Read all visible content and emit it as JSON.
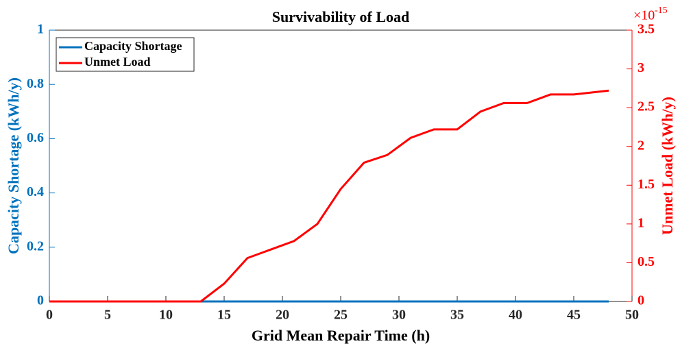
{
  "chart_data": {
    "type": "line",
    "title": "Survivability of Load",
    "x_label": "Grid Mean Repair Time (h)",
    "y_label": "Capacity Shortage (kWh/y)",
    "y2_label": "Unmet Load (kWh/y)",
    "y2_multiplier": "×10",
    "y2_exponent": "-15",
    "x": [
      0,
      1,
      3,
      5,
      7,
      9,
      11,
      13,
      15,
      17,
      19,
      21,
      23,
      25,
      27,
      29,
      31,
      33,
      35,
      37,
      39,
      41,
      43,
      45,
      48
    ],
    "series": [
      {
        "name": "Capacity Shortage",
        "color": "#0072bd",
        "axis": "y",
        "values": [
          0,
          0,
          0,
          0,
          0,
          0,
          0,
          0,
          0,
          0,
          0,
          0,
          0,
          0,
          0,
          0,
          0,
          0,
          0,
          0,
          0,
          0,
          0,
          0,
          0
        ]
      },
      {
        "name": "Unmet Load",
        "color": "#ff0000",
        "axis": "y2",
        "values": [
          0,
          0,
          0,
          0,
          0,
          0,
          0,
          0,
          0.23,
          0.56,
          0.67,
          0.78,
          1.0,
          1.45,
          1.79,
          1.89,
          2.11,
          2.22,
          2.22,
          2.45,
          2.56,
          2.56,
          2.67,
          2.67,
          2.72
        ]
      }
    ],
    "xlim": [
      0,
      50
    ],
    "xticks": [
      0,
      5,
      10,
      15,
      20,
      25,
      30,
      35,
      40,
      45,
      50
    ],
    "ylim": [
      0,
      1
    ],
    "yticks": [
      0,
      0.2,
      0.4,
      0.6,
      0.8,
      1
    ],
    "y2lim": [
      0,
      3.5
    ],
    "y2ticks": [
      0,
      0.5,
      1,
      1.5,
      2,
      2.5,
      3,
      3.5
    ],
    "legend": "upper left",
    "grid": false
  }
}
